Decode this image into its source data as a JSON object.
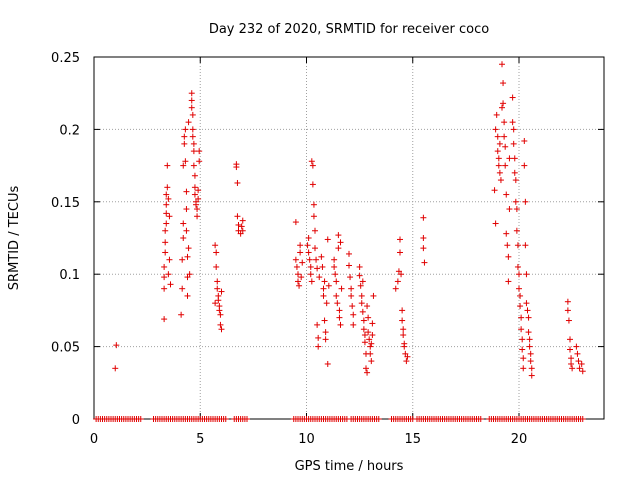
{
  "chart_data": {
    "type": "scatter",
    "title": "Day 232 of 2020, SRMTID for receiver coco",
    "xlabel": "GPS time / hours",
    "ylabel": "SRMTID / TECUs",
    "xlim": [
      0,
      24
    ],
    "ylim": [
      0,
      0.25
    ],
    "x_ticks": [
      0,
      5,
      10,
      15,
      20
    ],
    "x_tick_labels": [
      "0",
      "5",
      "10",
      "15",
      "20"
    ],
    "y_ticks": [
      0,
      0.05,
      0.1,
      0.15,
      0.2,
      0.25
    ],
    "y_tick_labels": [
      "0",
      "0.05",
      "0.1",
      "0.15",
      "0.2",
      "0.25"
    ],
    "grid": true,
    "marker": "+",
    "marker_color": "#e00000",
    "series": [
      {
        "name": "SRMTID",
        "points": [
          [
            1.05,
            0.051
          ],
          [
            1.0,
            0.035
          ],
          [
            3.3,
            0.069
          ],
          [
            3.3,
            0.09
          ],
          [
            3.3,
            0.098
          ],
          [
            3.3,
            0.105
          ],
          [
            3.35,
            0.115
          ],
          [
            3.35,
            0.122
          ],
          [
            3.35,
            0.13
          ],
          [
            3.4,
            0.135
          ],
          [
            3.4,
            0.142
          ],
          [
            3.4,
            0.148
          ],
          [
            3.4,
            0.155
          ],
          [
            3.45,
            0.175
          ],
          [
            3.45,
            0.16
          ],
          [
            3.5,
            0.152
          ],
          [
            3.5,
            0.1
          ],
          [
            3.55,
            0.11
          ],
          [
            3.55,
            0.14
          ],
          [
            3.6,
            0.093
          ],
          [
            4.1,
            0.072
          ],
          [
            4.15,
            0.09
          ],
          [
            4.15,
            0.11
          ],
          [
            4.2,
            0.125
          ],
          [
            4.2,
            0.135
          ],
          [
            4.2,
            0.175
          ],
          [
            4.25,
            0.19
          ],
          [
            4.25,
            0.195
          ],
          [
            4.3,
            0.2
          ],
          [
            4.3,
            0.178
          ],
          [
            4.35,
            0.157
          ],
          [
            4.35,
            0.145
          ],
          [
            4.35,
            0.13
          ],
          [
            4.4,
            0.112
          ],
          [
            4.4,
            0.098
          ],
          [
            4.4,
            0.085
          ],
          [
            4.45,
            0.205
          ],
          [
            4.45,
            0.118
          ],
          [
            4.5,
            0.1
          ],
          [
            4.6,
            0.225
          ],
          [
            4.6,
            0.22
          ],
          [
            4.6,
            0.215
          ],
          [
            4.65,
            0.21
          ],
          [
            4.65,
            0.2
          ],
          [
            4.65,
            0.195
          ],
          [
            4.7,
            0.19
          ],
          [
            4.7,
            0.185
          ],
          [
            4.7,
            0.175
          ],
          [
            4.75,
            0.168
          ],
          [
            4.75,
            0.16
          ],
          [
            4.75,
            0.155
          ],
          [
            4.8,
            0.15
          ],
          [
            4.8,
            0.148
          ],
          [
            4.85,
            0.145
          ],
          [
            4.85,
            0.14
          ],
          [
            4.9,
            0.158
          ],
          [
            4.9,
            0.152
          ],
          [
            4.95,
            0.185
          ],
          [
            4.95,
            0.178
          ],
          [
            5.7,
            0.12
          ],
          [
            5.75,
            0.115
          ],
          [
            5.75,
            0.105
          ],
          [
            5.8,
            0.095
          ],
          [
            5.8,
            0.09
          ],
          [
            5.85,
            0.085
          ],
          [
            5.85,
            0.082
          ],
          [
            5.9,
            0.078
          ],
          [
            5.9,
            0.075
          ],
          [
            5.95,
            0.072
          ],
          [
            5.95,
            0.065
          ],
          [
            6.0,
            0.062
          ],
          [
            6.0,
            0.088
          ],
          [
            5.7,
            0.08
          ],
          [
            6.7,
            0.176
          ],
          [
            6.7,
            0.174
          ],
          [
            6.75,
            0.163
          ],
          [
            6.75,
            0.14
          ],
          [
            6.8,
            0.134
          ],
          [
            6.8,
            0.13
          ],
          [
            6.9,
            0.128
          ],
          [
            6.95,
            0.133
          ],
          [
            7.0,
            0.13
          ],
          [
            7.0,
            0.137
          ],
          [
            9.5,
            0.136
          ],
          [
            9.5,
            0.11
          ],
          [
            9.55,
            0.105
          ],
          [
            9.6,
            0.1
          ],
          [
            9.6,
            0.095
          ],
          [
            9.65,
            0.092
          ],
          [
            9.7,
            0.12
          ],
          [
            9.7,
            0.115
          ],
          [
            9.75,
            0.098
          ],
          [
            9.8,
            0.108
          ],
          [
            10.05,
            0.12
          ],
          [
            10.1,
            0.125
          ],
          [
            10.1,
            0.115
          ],
          [
            10.15,
            0.11
          ],
          [
            10.2,
            0.105
          ],
          [
            10.2,
            0.1
          ],
          [
            10.25,
            0.095
          ],
          [
            10.25,
            0.178
          ],
          [
            10.3,
            0.175
          ],
          [
            10.3,
            0.162
          ],
          [
            10.35,
            0.148
          ],
          [
            10.35,
            0.14
          ],
          [
            10.4,
            0.13
          ],
          [
            10.4,
            0.118
          ],
          [
            10.45,
            0.11
          ],
          [
            10.5,
            0.104
          ],
          [
            10.5,
            0.065
          ],
          [
            10.55,
            0.056
          ],
          [
            10.55,
            0.05
          ],
          [
            10.6,
            0.098
          ],
          [
            10.7,
            0.112
          ],
          [
            10.75,
            0.105
          ],
          [
            10.8,
            0.09
          ],
          [
            10.8,
            0.085
          ],
          [
            10.85,
            0.095
          ],
          [
            10.85,
            0.068
          ],
          [
            10.9,
            0.06
          ],
          [
            10.9,
            0.055
          ],
          [
            10.95,
            0.08
          ],
          [
            11.0,
            0.124
          ],
          [
            11.0,
            0.038
          ],
          [
            11.05,
            0.092
          ],
          [
            11.3,
            0.11
          ],
          [
            11.3,
            0.105
          ],
          [
            11.35,
            0.1
          ],
          [
            11.4,
            0.095
          ],
          [
            11.4,
            0.085
          ],
          [
            11.45,
            0.08
          ],
          [
            11.5,
            0.127
          ],
          [
            11.5,
            0.118
          ],
          [
            11.55,
            0.075
          ],
          [
            11.55,
            0.07
          ],
          [
            11.6,
            0.065
          ],
          [
            11.6,
            0.122
          ],
          [
            11.65,
            0.09
          ],
          [
            12.0,
            0.114
          ],
          [
            12.0,
            0.106
          ],
          [
            12.05,
            0.098
          ],
          [
            12.1,
            0.09
          ],
          [
            12.1,
            0.085
          ],
          [
            12.15,
            0.078
          ],
          [
            12.2,
            0.072
          ],
          [
            12.2,
            0.065
          ],
          [
            12.5,
            0.105
          ],
          [
            12.5,
            0.099
          ],
          [
            12.55,
            0.092
          ],
          [
            12.6,
            0.085
          ],
          [
            12.6,
            0.08
          ],
          [
            12.65,
            0.074
          ],
          [
            12.7,
            0.068
          ],
          [
            12.7,
            0.062
          ],
          [
            12.75,
            0.058
          ],
          [
            12.75,
            0.053
          ],
          [
            12.8,
            0.045
          ],
          [
            12.8,
            0.035
          ],
          [
            12.85,
            0.032
          ],
          [
            12.85,
            0.078
          ],
          [
            12.9,
            0.07
          ],
          [
            12.9,
            0.06
          ],
          [
            12.95,
            0.055
          ],
          [
            13.0,
            0.05
          ],
          [
            13.0,
            0.045
          ],
          [
            13.05,
            0.04
          ],
          [
            13.05,
            0.052
          ],
          [
            13.1,
            0.058
          ],
          [
            13.1,
            0.066
          ],
          [
            12.65,
            0.095
          ],
          [
            13.15,
            0.085
          ],
          [
            14.2,
            0.09
          ],
          [
            14.3,
            0.095
          ],
          [
            14.35,
            0.102
          ],
          [
            14.4,
            0.124
          ],
          [
            14.4,
            0.115
          ],
          [
            14.45,
            0.1
          ],
          [
            14.5,
            0.075
          ],
          [
            14.5,
            0.068
          ],
          [
            14.55,
            0.062
          ],
          [
            14.55,
            0.058
          ],
          [
            14.6,
            0.052
          ],
          [
            14.6,
            0.05
          ],
          [
            14.65,
            0.045
          ],
          [
            14.7,
            0.04
          ],
          [
            14.75,
            0.043
          ],
          [
            15.5,
            0.139
          ],
          [
            15.5,
            0.125
          ],
          [
            15.5,
            0.118
          ],
          [
            15.55,
            0.108
          ],
          [
            18.85,
            0.158
          ],
          [
            18.9,
            0.135
          ],
          [
            18.9,
            0.2
          ],
          [
            18.95,
            0.21
          ],
          [
            19.0,
            0.195
          ],
          [
            19.0,
            0.185
          ],
          [
            19.05,
            0.18
          ],
          [
            19.05,
            0.175
          ],
          [
            19.1,
            0.19
          ],
          [
            19.1,
            0.17
          ],
          [
            19.15,
            0.165
          ],
          [
            19.2,
            0.215
          ],
          [
            19.2,
            0.245
          ],
          [
            19.25,
            0.232
          ],
          [
            19.25,
            0.218
          ],
          [
            19.3,
            0.205
          ],
          [
            19.3,
            0.195
          ],
          [
            19.35,
            0.188
          ],
          [
            19.35,
            0.175
          ],
          [
            19.4,
            0.155
          ],
          [
            19.4,
            0.128
          ],
          [
            19.45,
            0.12
          ],
          [
            19.5,
            0.112
          ],
          [
            19.5,
            0.095
          ],
          [
            19.55,
            0.18
          ],
          [
            19.55,
            0.145
          ],
          [
            19.7,
            0.222
          ],
          [
            19.7,
            0.205
          ],
          [
            19.75,
            0.2
          ],
          [
            19.75,
            0.19
          ],
          [
            19.8,
            0.18
          ],
          [
            19.8,
            0.17
          ],
          [
            19.85,
            0.165
          ],
          [
            19.85,
            0.15
          ],
          [
            19.9,
            0.145
          ],
          [
            19.9,
            0.13
          ],
          [
            19.95,
            0.12
          ],
          [
            19.95,
            0.105
          ],
          [
            20.0,
            0.1
          ],
          [
            20.0,
            0.09
          ],
          [
            20.05,
            0.085
          ],
          [
            20.05,
            0.078
          ],
          [
            20.1,
            0.07
          ],
          [
            20.1,
            0.062
          ],
          [
            20.15,
            0.055
          ],
          [
            20.15,
            0.048
          ],
          [
            20.2,
            0.042
          ],
          [
            20.2,
            0.035
          ],
          [
            20.25,
            0.192
          ],
          [
            20.25,
            0.175
          ],
          [
            20.3,
            0.15
          ],
          [
            20.3,
            0.12
          ],
          [
            20.35,
            0.1
          ],
          [
            20.35,
            0.08
          ],
          [
            20.4,
            0.075
          ],
          [
            20.45,
            0.06
          ],
          [
            20.5,
            0.055
          ],
          [
            20.5,
            0.05
          ],
          [
            20.55,
            0.045
          ],
          [
            20.55,
            0.04
          ],
          [
            20.6,
            0.035
          ],
          [
            20.6,
            0.03
          ],
          [
            20.45,
            0.07
          ],
          [
            22.3,
            0.081
          ],
          [
            22.3,
            0.075
          ],
          [
            22.35,
            0.068
          ],
          [
            22.4,
            0.055
          ],
          [
            22.4,
            0.048
          ],
          [
            22.45,
            0.042
          ],
          [
            22.45,
            0.038
          ],
          [
            22.5,
            0.035
          ],
          [
            22.7,
            0.05
          ],
          [
            22.75,
            0.045
          ],
          [
            22.8,
            0.04
          ],
          [
            22.85,
            0.035
          ],
          [
            22.95,
            0.038
          ],
          [
            23.0,
            0.033
          ]
        ],
        "zero_baseline": {
          "y": 0,
          "ranges": [
            [
              0.1,
              2.2
            ],
            [
              2.8,
              6.2
            ],
            [
              6.6,
              7.2
            ],
            [
              9.4,
              11.9
            ],
            [
              12.1,
              13.4
            ],
            [
              14.0,
              15.0
            ],
            [
              15.2,
              18.2
            ],
            [
              18.6,
              23.0
            ]
          ],
          "step": 0.1
        }
      }
    ]
  }
}
